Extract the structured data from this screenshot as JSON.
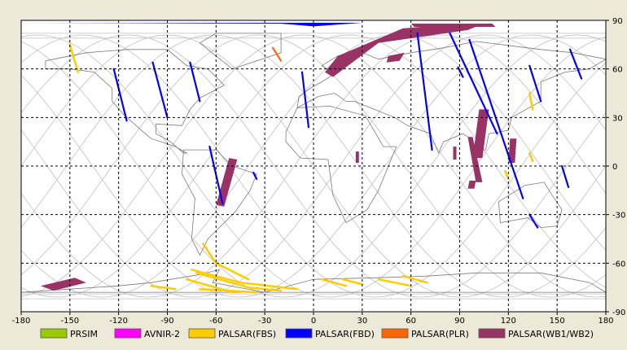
{
  "map": {
    "x_axis": {
      "min": -180,
      "max": 180,
      "step": 30,
      "ticks": [
        "-180",
        "-150",
        "-120",
        "-90",
        "-60",
        "-30",
        "0",
        "30",
        "60",
        "90",
        "120",
        "150",
        "180"
      ]
    },
    "y_axis": {
      "min": -90,
      "max": 90,
      "step": 30,
      "ticks": [
        "90",
        "60",
        "30",
        "0",
        "-30",
        "-60",
        "-90"
      ]
    },
    "background": "#ffffff",
    "grid": "dashed",
    "colors": {
      "orbit": "#c0c0c0",
      "coast": "#7a7a7a",
      "frame_bg": "#ece9d8"
    }
  },
  "legend": [
    {
      "label": "PRSIM",
      "color": "#99cc00"
    },
    {
      "label": "AVNIR-2",
      "color": "#ff00ff"
    },
    {
      "label": "PALSAR(FBS)",
      "color": "#ffcc00"
    },
    {
      "label": "PALSAR(FBD)",
      "color": "#0000ff"
    },
    {
      "label": "PALSAR(PLR)",
      "color": "#ff6600"
    },
    {
      "label": "PALSAR(WB1/WB2)",
      "color": "#993366"
    }
  ],
  "observations": {
    "wb": [
      {
        "lon_lat": [
          [
            7,
            58
          ],
          [
            15,
            68
          ],
          [
            55,
            85
          ],
          [
            90,
            88
          ],
          [
            105,
            88
          ],
          [
            95,
            84
          ],
          [
            40,
            76
          ],
          [
            12,
            55
          ]
        ]
      },
      {
        "lon_lat": [
          [
            60,
            88
          ],
          [
            110,
            88
          ],
          [
            112,
            86
          ],
          [
            62,
            86
          ]
        ]
      },
      {
        "lon_lat": [
          [
            46,
            68
          ],
          [
            56,
            70
          ],
          [
            53,
            65
          ],
          [
            45,
            64
          ]
        ]
      },
      {
        "lon_lat": [
          [
            -52,
            5
          ],
          [
            -47,
            4
          ],
          [
            -55,
            -25
          ],
          [
            -60,
            -24
          ]
        ]
      },
      {
        "lon_lat": [
          [
            86,
            12
          ],
          [
            88,
            12
          ],
          [
            88,
            4
          ],
          [
            86,
            4
          ]
        ]
      },
      {
        "lon_lat": [
          [
            102,
            35
          ],
          [
            108,
            35
          ],
          [
            104,
            5
          ],
          [
            98,
            5
          ]
        ]
      },
      {
        "lon_lat": [
          [
            95,
            18
          ],
          [
            98,
            18
          ],
          [
            104,
            -10
          ],
          [
            100,
            -10
          ]
        ]
      },
      {
        "lon_lat": [
          [
            121,
            17
          ],
          [
            125,
            17
          ],
          [
            124,
            2
          ],
          [
            120,
            2
          ]
        ]
      },
      {
        "lon_lat": [
          [
            96,
            -9
          ],
          [
            100,
            -9
          ],
          [
            99,
            -14
          ],
          [
            95,
            -14
          ]
        ]
      },
      {
        "lon_lat": [
          [
            26,
            9
          ],
          [
            28,
            9
          ],
          [
            28,
            2
          ],
          [
            26,
            2
          ]
        ]
      },
      {
        "lon_lat": [
          [
            -168,
            -74
          ],
          [
            -147,
            -69
          ],
          [
            -140,
            -72
          ],
          [
            -160,
            -77
          ]
        ]
      }
    ],
    "fbd": [
      {
        "lon_lat": [
          [
            -123,
            60
          ],
          [
            -115,
            28
          ]
        ]
      },
      {
        "lon_lat": [
          [
            -99,
            64
          ],
          [
            -90,
            30
          ]
        ]
      },
      {
        "lon_lat": [
          [
            -76,
            64
          ],
          [
            -70,
            40
          ]
        ]
      },
      {
        "lon_lat": [
          [
            -64,
            12
          ],
          [
            -56,
            -23
          ]
        ]
      },
      {
        "lon_lat": [
          [
            -7,
            58
          ],
          [
            -3,
            24
          ]
        ]
      },
      {
        "lon_lat": [
          [
            64,
            82
          ],
          [
            73,
            10
          ]
        ]
      },
      {
        "lon_lat": [
          [
            84,
            82
          ],
          [
            113,
            20
          ]
        ]
      },
      {
        "lon_lat": [
          [
            96,
            78
          ],
          [
            129,
            -20
          ]
        ]
      },
      {
        "lon_lat": [
          [
            158,
            72
          ],
          [
            165,
            54
          ]
        ]
      },
      {
        "lon_lat": [
          [
            133,
            62
          ],
          [
            140,
            40
          ]
        ]
      },
      {
        "lon_lat": [
          [
            133,
            -30
          ],
          [
            138,
            -38
          ]
        ]
      },
      {
        "lon_lat": [
          [
            153,
            0
          ],
          [
            157,
            -13
          ]
        ]
      },
      {
        "lon_lat": [
          [
            -37,
            -4
          ],
          [
            -35,
            -8
          ]
        ]
      },
      {
        "lon_lat": [
          [
            89,
            61
          ],
          [
            92,
            55
          ]
        ]
      }
    ],
    "fbs": [
      {
        "lon_lat": [
          [
            -150,
            75
          ],
          [
            -145,
            58
          ]
        ]
      },
      {
        "lon_lat": [
          [
            -68,
            -48
          ],
          [
            -60,
            -60
          ],
          [
            -40,
            -70
          ]
        ]
      },
      {
        "lon_lat": [
          [
            -75,
            -64
          ],
          [
            -45,
            -72
          ],
          [
            -10,
            -76
          ]
        ]
      },
      {
        "lon_lat": [
          [
            -72,
            -66
          ],
          [
            -40,
            -75
          ],
          [
            -20,
            -77
          ]
        ]
      },
      {
        "lon_lat": [
          [
            -78,
            -70
          ],
          [
            -50,
            -78
          ]
        ]
      },
      {
        "lon_lat": [
          [
            -70,
            -76
          ],
          [
            -35,
            -78
          ]
        ]
      },
      {
        "lon_lat": [
          [
            5,
            -70
          ],
          [
            20,
            -74
          ]
        ]
      },
      {
        "lon_lat": [
          [
            18,
            -70
          ],
          [
            30,
            -73
          ]
        ]
      },
      {
        "lon_lat": [
          [
            40,
            -70
          ],
          [
            60,
            -74
          ]
        ]
      },
      {
        "lon_lat": [
          [
            55,
            -68
          ],
          [
            70,
            -72
          ]
        ]
      },
      {
        "lon_lat": [
          [
            -100,
            -74
          ],
          [
            -85,
            -76
          ]
        ]
      },
      {
        "lon_lat": [
          [
            133,
            45
          ],
          [
            135,
            35
          ]
        ]
      },
      {
        "lon_lat": [
          [
            118,
            -3
          ],
          [
            120,
            -8
          ]
        ]
      },
      {
        "lon_lat": [
          [
            133,
            8
          ],
          [
            135,
            3
          ]
        ]
      }
    ],
    "plr": [
      {
        "lon_lat": [
          [
            -25,
            73
          ],
          [
            -20,
            65
          ]
        ]
      }
    ]
  }
}
